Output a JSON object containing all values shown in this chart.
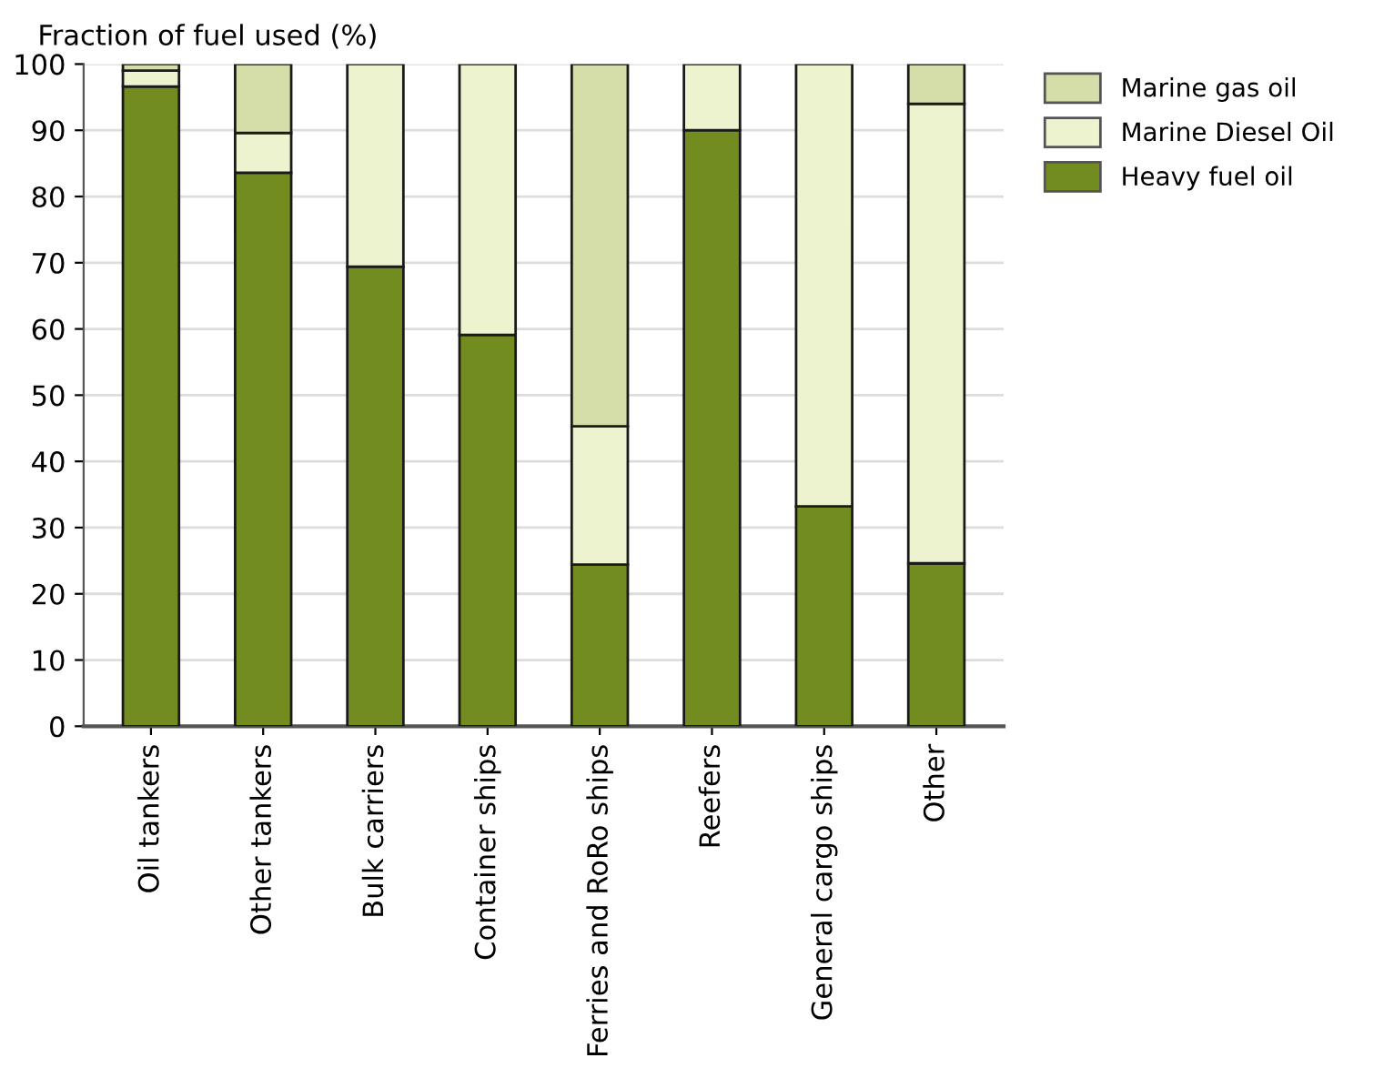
{
  "chart_data": {
    "type": "bar",
    "stacked": true,
    "ylabel": "Fraction of fuel used (%)",
    "categories": [
      "Oil tankers",
      "Other tankers",
      "Bulk carriers",
      "Container ships",
      "Ferries and RoRo ships",
      "Reefers",
      "General cargo ships",
      "Other"
    ],
    "series": [
      {
        "name": "Heavy fuel oil",
        "color": "#738c20",
        "values": [
          96.6,
          83.6,
          69.4,
          59.1,
          24.4,
          90.0,
          33.2,
          24.6
        ]
      },
      {
        "name": "Marine Diesel Oil",
        "color": "#edf2cf",
        "values": [
          2.4,
          6.0,
          30.6,
          40.9,
          20.9,
          10.0,
          66.8,
          69.4
        ]
      },
      {
        "name": "Marine gas oil",
        "color": "#d5dda8",
        "values": [
          1.0,
          10.4,
          null,
          null,
          54.7,
          null,
          null,
          6.0
        ]
      }
    ],
    "ylim": [
      0,
      100
    ],
    "yticks": [
      0,
      10,
      20,
      30,
      40,
      50,
      60,
      70,
      80,
      90,
      100
    ],
    "grid": "y",
    "legend": "top right"
  }
}
